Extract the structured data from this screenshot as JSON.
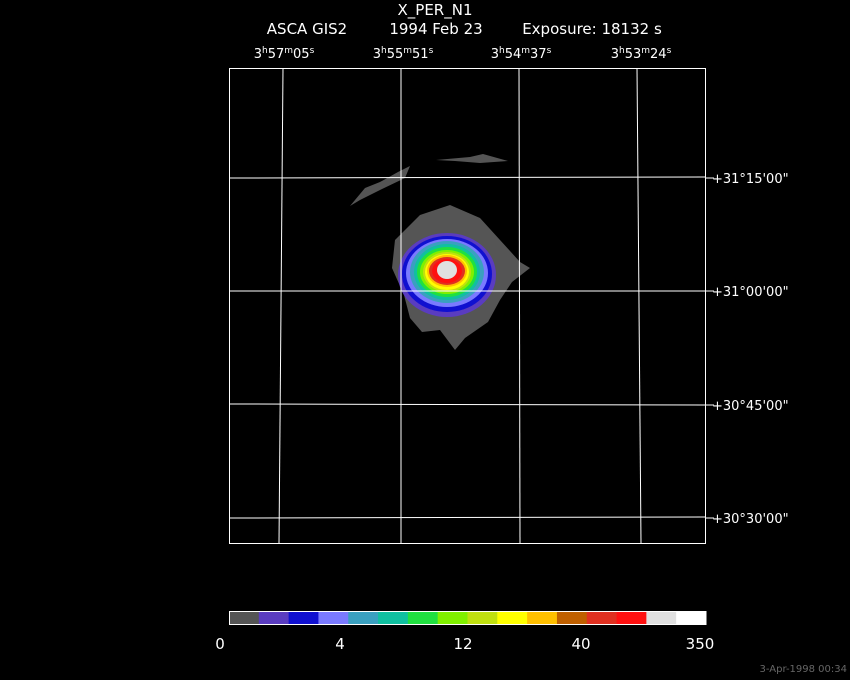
{
  "header": {
    "title": "X_PER_N1",
    "instrument": "ASCA GIS2",
    "date": "1994 Feb 23",
    "exposure": "Exposure: 18132 s"
  },
  "ra_labels": [
    [
      "3",
      "h",
      "57",
      "m",
      "05",
      "s"
    ],
    [
      "3",
      "h",
      "55",
      "m",
      "51",
      "s"
    ],
    [
      "3",
      "h",
      "54",
      "m",
      "37",
      "s"
    ],
    [
      "3",
      "h",
      "53",
      "m",
      "24",
      "s"
    ]
  ],
  "dec_labels": [
    "+31°15'00\"",
    "+31°00'00\"",
    "+30°45'00\"",
    "+30°30'00\""
  ],
  "colorbar_labels": [
    "0",
    "4",
    "12",
    "40",
    "350"
  ],
  "footer": "3-Apr-1998 00:34"
}
